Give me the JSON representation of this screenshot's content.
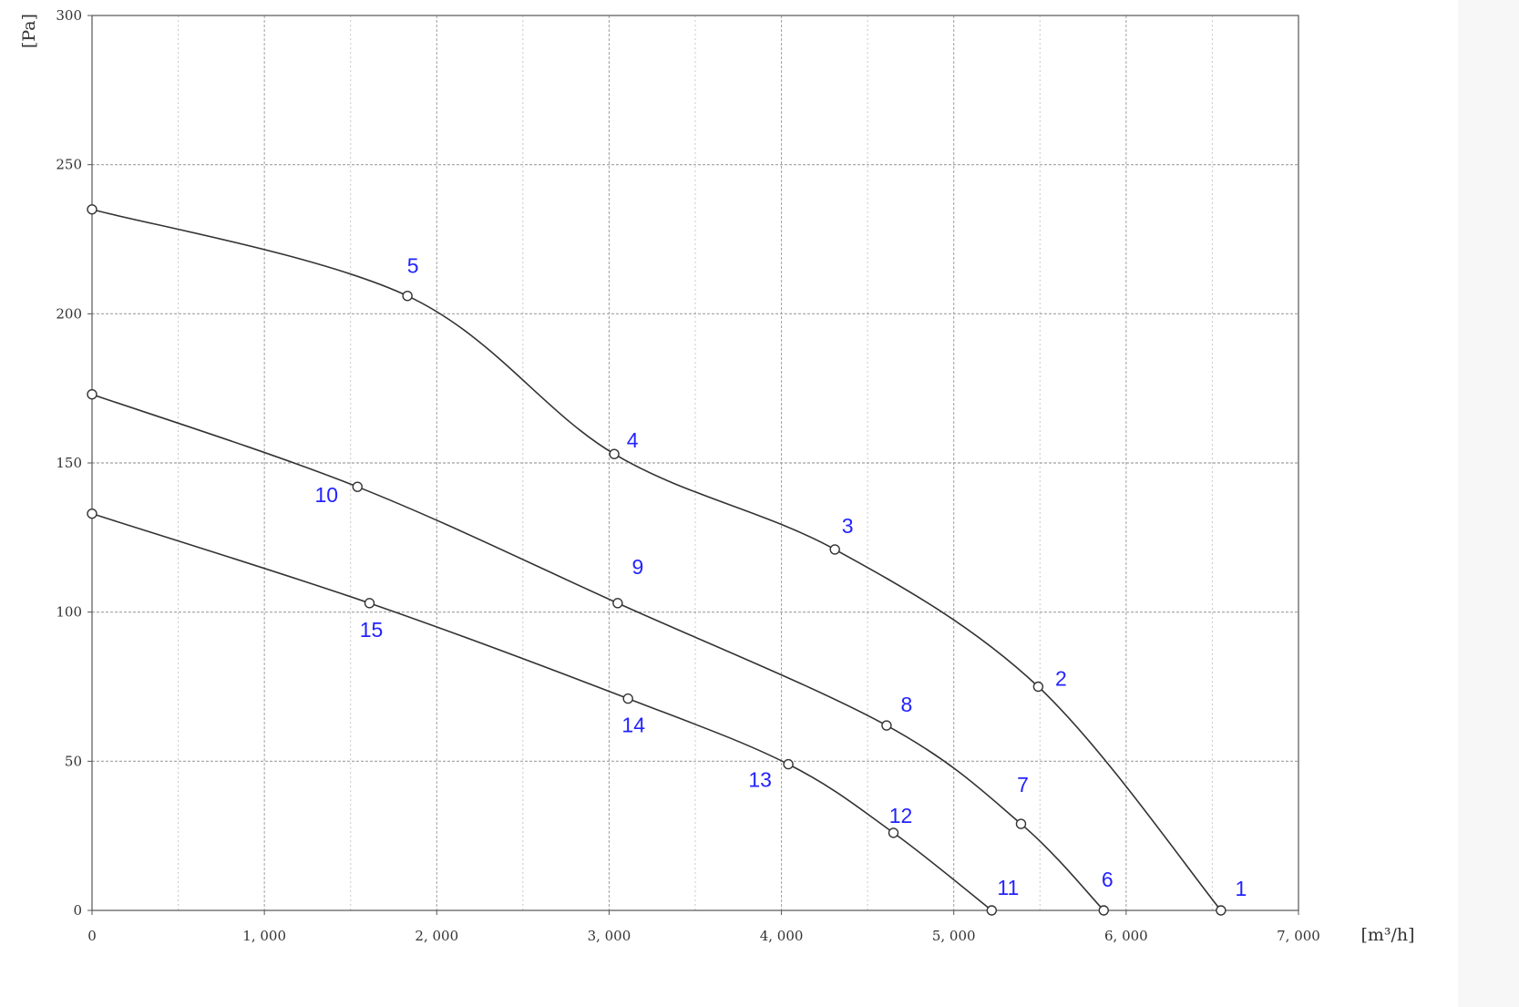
{
  "chart_data": {
    "type": "line",
    "title": "",
    "xlabel": "[m³/h]",
    "ylabel": "[Pa]",
    "xlim": [
      0,
      7000
    ],
    "ylim": [
      0,
      300
    ],
    "x_ticks": [
      0,
      1000,
      2000,
      3000,
      4000,
      5000,
      6000,
      7000
    ],
    "x_tick_labels": [
      "0",
      "1, 000",
      "2, 000",
      "3, 000",
      "4, 000",
      "5, 000",
      "6, 000",
      "7, 000"
    ],
    "y_ticks": [
      0,
      50,
      100,
      150,
      200,
      250,
      300
    ],
    "y_tick_labels": [
      "0",
      "50",
      "100",
      "150",
      "200",
      "250",
      "300"
    ],
    "grid": true,
    "series": [
      {
        "points": [
          {
            "x": 0,
            "y": 235,
            "label": ""
          },
          {
            "x": 1830,
            "y": 206,
            "label": "5"
          },
          {
            "x": 3030,
            "y": 153,
            "label": "4"
          },
          {
            "x": 4310,
            "y": 121,
            "label": "3"
          },
          {
            "x": 5490,
            "y": 75,
            "label": "2"
          },
          {
            "x": 6550,
            "y": 0,
            "label": "1"
          }
        ]
      },
      {
        "points": [
          {
            "x": 0,
            "y": 173,
            "label": ""
          },
          {
            "x": 1540,
            "y": 142,
            "label": "10"
          },
          {
            "x": 3050,
            "y": 103,
            "label": "9"
          },
          {
            "x": 4610,
            "y": 62,
            "label": "8"
          },
          {
            "x": 5390,
            "y": 29,
            "label": "7"
          },
          {
            "x": 5870,
            "y": 0,
            "label": "6"
          }
        ]
      },
      {
        "points": [
          {
            "x": 0,
            "y": 133,
            "label": ""
          },
          {
            "x": 1610,
            "y": 103,
            "label": "15"
          },
          {
            "x": 3110,
            "y": 71,
            "label": "14"
          },
          {
            "x": 4040,
            "y": 49,
            "label": "13"
          },
          {
            "x": 4650,
            "y": 26,
            "label": "12"
          },
          {
            "x": 5220,
            "y": 0,
            "label": "11"
          }
        ]
      }
    ]
  },
  "colors": {
    "curve": "#333333",
    "label": "#2323ff",
    "grid_major": "#a0a0a0",
    "grid_minor": "#c8c8c8",
    "axis": "#555555"
  }
}
